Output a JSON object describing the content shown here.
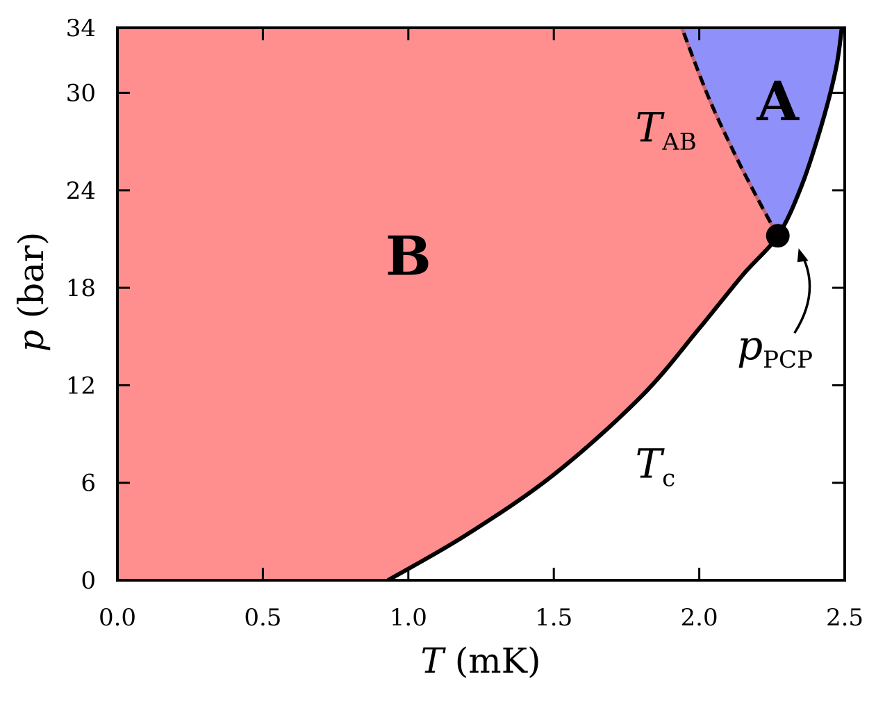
{
  "chart_data": {
    "type": "area",
    "xlabel": {
      "var": "T",
      "unit": " (mK)"
    },
    "ylabel": {
      "var": "p",
      "unit": " (bar)"
    },
    "xlim": [
      0,
      2.5
    ],
    "ylim": [
      0,
      34
    ],
    "x_ticks": [
      "0.0",
      "0.5",
      "1.0",
      "1.5",
      "2.0",
      "2.5"
    ],
    "y_ticks": [
      "0",
      "6",
      "12",
      "18",
      "24",
      "30",
      "34"
    ],
    "grid": false,
    "colors": {
      "B": "#ff8f8f",
      "A": "#9090fa",
      "tab_line": "#c46478",
      "curve": "#000000"
    },
    "regions": [
      {
        "name": "B",
        "label": "B",
        "at": [
          1.0,
          20.0
        ]
      },
      {
        "name": "A",
        "label": "A",
        "at": [
          2.27,
          29.5
        ]
      }
    ],
    "series": [
      {
        "key": "Tc",
        "points": [
          [
            0.93,
            0
          ],
          [
            1.2,
            2.8
          ],
          [
            1.5,
            6.5
          ],
          [
            1.8,
            11.3
          ],
          [
            2.0,
            15.5
          ],
          [
            2.15,
            18.8
          ],
          [
            2.27,
            21.2
          ],
          [
            2.35,
            24.2
          ],
          [
            2.42,
            28.0
          ],
          [
            2.47,
            31.5
          ],
          [
            2.49,
            34
          ]
        ]
      },
      {
        "key": "TAB",
        "points": [
          [
            2.27,
            21.2
          ],
          [
            2.2,
            23.5
          ],
          [
            2.12,
            26.3
          ],
          [
            2.03,
            29.8
          ],
          [
            1.94,
            34
          ]
        ]
      }
    ],
    "annotations": [
      {
        "key": "Tc",
        "text": "T",
        "sub": "c",
        "at": [
          1.78,
          6.3
        ]
      },
      {
        "key": "TAB",
        "text": "T",
        "sub": "AB",
        "at": [
          1.78,
          27.0
        ]
      },
      {
        "key": "pcp",
        "text": "p",
        "sub": "PCP",
        "at": [
          2.13,
          13.6
        ],
        "point": [
          2.27,
          21.2
        ]
      }
    ]
  }
}
